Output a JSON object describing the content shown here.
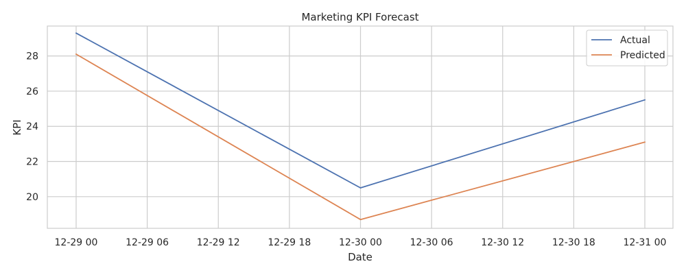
{
  "chart_data": {
    "type": "line",
    "title": "Marketing KPI Forecast",
    "xlabel": "Date",
    "ylabel": "KPI",
    "x": [
      "12-29 00",
      "12-30 00",
      "12-31 00"
    ],
    "x_ticks": [
      "12-29 00",
      "12-29 06",
      "12-29 12",
      "12-29 18",
      "12-30 00",
      "12-30 06",
      "12-30 12",
      "12-30 18",
      "12-31 00"
    ],
    "y_ticks": [
      20,
      22,
      24,
      26,
      28
    ],
    "ylim": [
      18.2,
      29.7
    ],
    "grid": true,
    "legend_position": "top-right",
    "series": [
      {
        "name": "Actual",
        "color": "#4c72b0",
        "values": [
          29.3,
          20.5,
          25.5
        ]
      },
      {
        "name": "Predicted",
        "color": "#dd8452",
        "values": [
          28.1,
          18.7,
          23.1
        ]
      }
    ]
  }
}
